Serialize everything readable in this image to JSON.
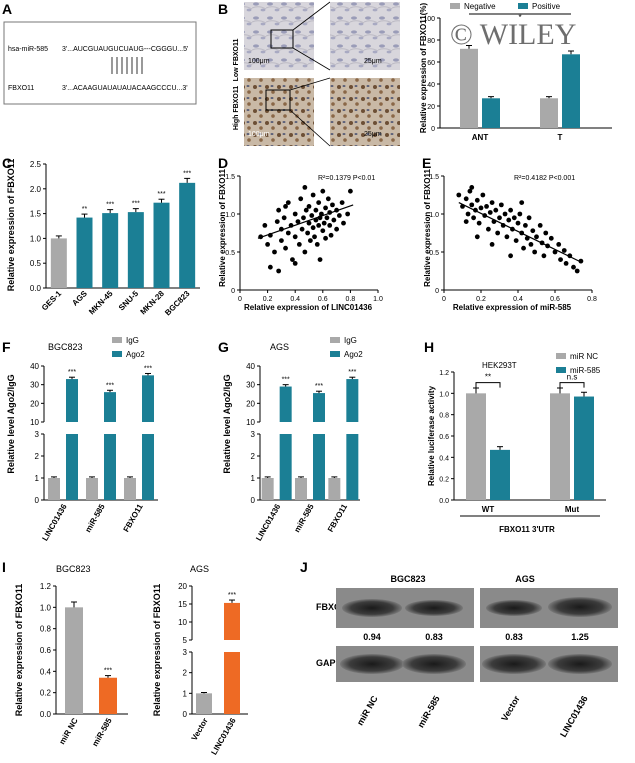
{
  "colors": {
    "gray": "#a9a9a9",
    "teal": "#1b7f95",
    "orange": "#ee6a24",
    "blot_dark": "#333333",
    "blot_bg": "#8a8a8a"
  },
  "panel_letters": [
    "A",
    "B",
    "C",
    "D",
    "E",
    "F",
    "G",
    "H",
    "I",
    "J"
  ],
  "panelA": {
    "mirna_label": "hsa-miR-585",
    "mirna_seq": "3'...AUCGUAUGUCUAUG---CGGGU...5'",
    "target_label": "FBXO11",
    "target_seq": "3'...ACAAGUAUAUAUACAAGCCCU...3'"
  },
  "panelB": {
    "low_label": "Low FBXO11",
    "high_label": "High FBXO11",
    "scale_100": "100μm",
    "scale_25": "25μm",
    "watermark": "© WILEY"
  },
  "chart_data": [
    {
      "panel": "B",
      "type": "bar",
      "categories": [
        "ANT",
        "T"
      ],
      "series": [
        {
          "name": "Negative",
          "values": [
            72,
            27
          ],
          "errors": [
            3,
            1.5
          ]
        },
        {
          "name": "Positive",
          "values": [
            27,
            67
          ],
          "errors": [
            1.5,
            3
          ]
        }
      ],
      "ylabel": "Relative expression of FBXO11(%)",
      "ylim": [
        0,
        100
      ],
      "yticks": [
        "0",
        "20",
        "40",
        "60",
        "80",
        "100"
      ],
      "significance": [
        "*"
      ]
    },
    {
      "panel": "C",
      "type": "bar",
      "categories": [
        "GES-1",
        "AGS",
        "MKN-45",
        "SNU-5",
        "MKN-28",
        "BGC823"
      ],
      "values": [
        1.0,
        1.42,
        1.51,
        1.53,
        1.72,
        2.12
      ],
      "errors": [
        0.05,
        0.07,
        0.07,
        0.07,
        0.07,
        0.09
      ],
      "significance": [
        "",
        "**",
        "***",
        "***",
        "***",
        "***"
      ],
      "ylabel": "Relative expression of FBXO11",
      "ylim": [
        0,
        2.5
      ],
      "yticks": [
        "0.0",
        "0.5",
        "1.0",
        "1.5",
        "2.0",
        "2.5"
      ]
    },
    {
      "panel": "D",
      "type": "scatter",
      "xlabel": "Relative expression of LINC01436",
      "ylabel": "Relative expression of FBXO11",
      "xlim": [
        0,
        1.0
      ],
      "ylim": [
        0,
        1.5
      ],
      "xticks": [
        "0",
        "0.2",
        "0.4",
        "0.6",
        "0.8",
        "1.0"
      ],
      "yticks": [
        "0",
        "0.5",
        "1.0",
        "1.5"
      ],
      "annotation": "R²=0.1379 P<0.01",
      "trend": [
        [
          0.13,
          0.68
        ],
        [
          0.82,
          1.12
        ]
      ],
      "points": [
        [
          0.15,
          0.7
        ],
        [
          0.18,
          0.85
        ],
        [
          0.2,
          0.6
        ],
        [
          0.22,
          0.3
        ],
        [
          0.22,
          0.72
        ],
        [
          0.25,
          0.5
        ],
        [
          0.27,
          0.9
        ],
        [
          0.28,
          1.05
        ],
        [
          0.3,
          0.65
        ],
        [
          0.3,
          0.8
        ],
        [
          0.32,
          0.95
        ],
        [
          0.33,
          0.55
        ],
        [
          0.35,
          0.75
        ],
        [
          0.35,
          1.15
        ],
        [
          0.37,
          0.85
        ],
        [
          0.38,
          0.4
        ],
        [
          0.4,
          1.0
        ],
        [
          0.4,
          0.7
        ],
        [
          0.42,
          0.9
        ],
        [
          0.43,
          0.6
        ],
        [
          0.44,
          1.2
        ],
        [
          0.45,
          0.8
        ],
        [
          0.46,
          0.95
        ],
        [
          0.47,
          0.5
        ],
        [
          0.48,
          1.05
        ],
        [
          0.49,
          0.75
        ],
        [
          0.5,
          0.88
        ],
        [
          0.5,
          1.1
        ],
        [
          0.51,
          0.65
        ],
        [
          0.52,
          0.98
        ],
        [
          0.53,
          0.82
        ],
        [
          0.53,
          1.25
        ],
        [
          0.54,
          0.7
        ],
        [
          0.55,
          0.92
        ],
        [
          0.55,
          1.05
        ],
        [
          0.56,
          0.6
        ],
        [
          0.57,
          0.85
        ],
        [
          0.57,
          1.15
        ],
        [
          0.58,
          0.95
        ],
        [
          0.58,
          0.4
        ],
        [
          0.59,
          1.0
        ],
        [
          0.6,
          0.78
        ],
        [
          0.6,
          1.3
        ],
        [
          0.61,
          0.88
        ],
        [
          0.62,
          1.08
        ],
        [
          0.62,
          0.68
        ],
        [
          0.63,
          0.95
        ],
        [
          0.64,
          1.2
        ],
        [
          0.65,
          0.85
        ],
        [
          0.65,
          1.02
        ],
        [
          0.66,
          0.72
        ],
        [
          0.67,
          1.12
        ],
        [
          0.68,
          0.92
        ],
        [
          0.7,
          1.05
        ],
        [
          0.7,
          0.8
        ],
        [
          0.72,
          0.98
        ],
        [
          0.74,
          1.15
        ],
        [
          0.75,
          0.88
        ],
        [
          0.78,
          1.0
        ],
        [
          0.8,
          1.3
        ],
        [
          0.4,
          0.35
        ],
        [
          0.47,
          1.35
        ],
        [
          0.33,
          1.1
        ],
        [
          0.28,
          0.25
        ]
      ]
    },
    {
      "panel": "E",
      "type": "scatter",
      "xlabel": "Relative expression of miR-585",
      "ylabel": "Relative expression of FBXO11",
      "xlim": [
        0,
        0.8
      ],
      "ylim": [
        0,
        1.5
      ],
      "xticks": [
        "0",
        "0.2",
        "0.4",
        "0.6",
        "0.8"
      ],
      "yticks": [
        "0",
        "0.5",
        "1.0",
        "1.5"
      ],
      "annotation": "R²=0.4182 P<0.001",
      "trend": [
        [
          0.08,
          1.15
        ],
        [
          0.73,
          0.38
        ]
      ],
      "points": [
        [
          0.08,
          1.25
        ],
        [
          0.1,
          1.1
        ],
        [
          0.12,
          1.2
        ],
        [
          0.13,
          1.0
        ],
        [
          0.14,
          1.3
        ],
        [
          0.15,
          1.12
        ],
        [
          0.16,
          0.95
        ],
        [
          0.17,
          1.05
        ],
        [
          0.18,
          1.18
        ],
        [
          0.19,
          0.88
        ],
        [
          0.2,
          1.08
        ],
        [
          0.21,
          1.25
        ],
        [
          0.22,
          0.98
        ],
        [
          0.23,
          1.1
        ],
        [
          0.24,
          0.8
        ],
        [
          0.25,
          1.02
        ],
        [
          0.26,
          1.15
        ],
        [
          0.27,
          0.9
        ],
        [
          0.28,
          1.05
        ],
        [
          0.29,
          0.75
        ],
        [
          0.3,
          0.95
        ],
        [
          0.31,
          1.12
        ],
        [
          0.32,
          0.85
        ],
        [
          0.33,
          1.0
        ],
        [
          0.34,
          0.7
        ],
        [
          0.35,
          0.92
        ],
        [
          0.36,
          1.05
        ],
        [
          0.37,
          0.8
        ],
        [
          0.38,
          0.95
        ],
        [
          0.39,
          0.65
        ],
        [
          0.4,
          0.88
        ],
        [
          0.41,
          1.0
        ],
        [
          0.42,
          0.75
        ],
        [
          0.43,
          0.55
        ],
        [
          0.44,
          0.85
        ],
        [
          0.45,
          0.68
        ],
        [
          0.46,
          0.95
        ],
        [
          0.47,
          0.6
        ],
        [
          0.48,
          0.78
        ],
        [
          0.49,
          0.5
        ],
        [
          0.5,
          0.7
        ],
        [
          0.52,
          0.85
        ],
        [
          0.53,
          0.62
        ],
        [
          0.54,
          0.45
        ],
        [
          0.55,
          0.75
        ],
        [
          0.56,
          0.58
        ],
        [
          0.58,
          0.68
        ],
        [
          0.6,
          0.5
        ],
        [
          0.62,
          0.6
        ],
        [
          0.63,
          0.4
        ],
        [
          0.65,
          0.52
        ],
        [
          0.66,
          0.35
        ],
        [
          0.68,
          0.45
        ],
        [
          0.7,
          0.3
        ],
        [
          0.72,
          0.25
        ],
        [
          0.74,
          0.38
        ],
        [
          0.12,
          0.9
        ],
        [
          0.18,
          0.7
        ],
        [
          0.26,
          0.6
        ],
        [
          0.36,
          0.45
        ],
        [
          0.15,
          1.35
        ],
        [
          0.42,
          1.15
        ]
      ]
    },
    {
      "panel": "F",
      "type": "bar",
      "title": "BGC823",
      "categories": [
        "LINC01436",
        "miR-585",
        "FBXO11"
      ],
      "series": [
        {
          "name": "IgG",
          "values": [
            1,
            1,
            1
          ],
          "errors": [
            0.05,
            0.05,
            0.05
          ]
        },
        {
          "name": "Ago2",
          "values": [
            33.0,
            26.0,
            35.0
          ],
          "errors": [
            1.0,
            1.0,
            1.0
          ]
        }
      ],
      "significance": [
        "***",
        "***",
        "***"
      ],
      "ylabel": "Relative level Ago2/IgG",
      "axis_break": [
        3,
        10
      ],
      "yticks": [
        "0",
        "1",
        "2",
        "3",
        "10",
        "20",
        "30",
        "40"
      ]
    },
    {
      "panel": "G",
      "type": "bar",
      "title": "AGS",
      "categories": [
        "LINC01436",
        "miR-585",
        "FBXO11"
      ],
      "series": [
        {
          "name": "IgG",
          "values": [
            1,
            1,
            1
          ],
          "errors": [
            0.05,
            0.05,
            0.05
          ]
        },
        {
          "name": "Ago2",
          "values": [
            29.0,
            25.5,
            33.0
          ],
          "errors": [
            1.0,
            1.0,
            1.0
          ]
        }
      ],
      "significance": [
        "***",
        "***",
        "***"
      ],
      "ylabel": "Relative level Ago2/IgG",
      "axis_break": [
        3,
        10
      ],
      "yticks": [
        "0",
        "1",
        "2",
        "3",
        "10",
        "20",
        "30",
        "40"
      ]
    },
    {
      "panel": "H",
      "type": "bar",
      "title": "HEK293T",
      "categories": [
        "WT",
        "Mut"
      ],
      "series": [
        {
          "name": "miR NC",
          "values": [
            1.0,
            1.0
          ],
          "errors": [
            0.05,
            0.05
          ]
        },
        {
          "name": "miR-585",
          "values": [
            0.47,
            0.97
          ],
          "errors": [
            0.03,
            0.04
          ]
        }
      ],
      "significance": [
        "**",
        "n.s"
      ],
      "xlabel": "FBXO11 3'UTR",
      "ylabel": "Relative luciferase activity",
      "ylim": [
        0,
        1.2
      ],
      "yticks": [
        "0.0",
        "0.2",
        "0.4",
        "0.6",
        "0.8",
        "1.0",
        "1.2"
      ]
    },
    {
      "panel": "I",
      "type": "bar",
      "title": "BGC823",
      "categories": [
        "miR NC",
        "miR-585"
      ],
      "values": [
        1.0,
        0.34
      ],
      "errors": [
        0.05,
        0.02
      ],
      "significance": [
        "",
        "***"
      ],
      "ylabel": "Relative expression of FBXO11",
      "ylim": [
        0,
        1.2
      ],
      "yticks": [
        "0.0",
        "0.2",
        "0.4",
        "0.6",
        "0.8",
        "1.0",
        "1.2"
      ]
    },
    {
      "panel": "I",
      "type": "bar",
      "title": "AGS",
      "categories": [
        "Vector",
        "LINC01436"
      ],
      "values": [
        1.0,
        15.3
      ],
      "errors": [
        0.04,
        0.8
      ],
      "significance": [
        "",
        "***"
      ],
      "ylabel": "Relative expression of FBXO11",
      "axis_break": [
        3,
        5
      ],
      "yticks": [
        "0",
        "1",
        "2",
        "3",
        "5",
        "10",
        "15",
        "20"
      ]
    }
  ],
  "panelJ": {
    "group1": "BGC823",
    "group2": "AGS",
    "row1_label": "FBXO11",
    "row2_label": "GAPDH",
    "densities": [
      "0.94",
      "0.83",
      "0.83",
      "1.25"
    ],
    "lanes": [
      "miR NC",
      "miR-585",
      "Vector",
      "LINC01436"
    ]
  }
}
